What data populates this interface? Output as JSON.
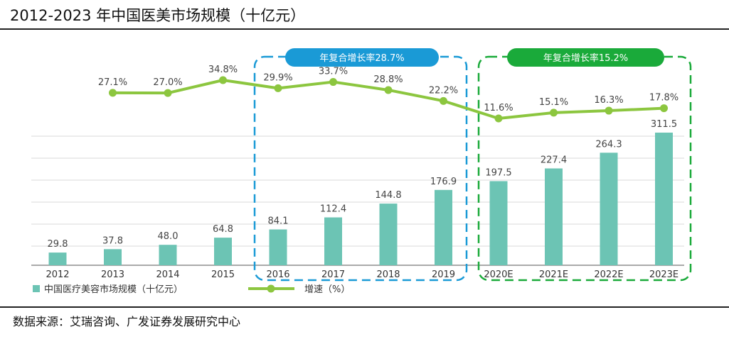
{
  "page": {
    "title": "2012-2023 年中国医美市场规模（十亿元）",
    "source": "数据来源：艾瑞咨询、广发证券发展研究中心"
  },
  "chart_data": {
    "type": "bar",
    "categories": [
      "2012",
      "2013",
      "2014",
      "2015",
      "2016",
      "2017",
      "2018",
      "2019",
      "2020E",
      "2021E",
      "2022E",
      "2023E"
    ],
    "series": [
      {
        "name": "中国医疗美容市场规模（十亿元）",
        "type": "bar",
        "color": "#6cc4b4",
        "values": [
          29.8,
          37.8,
          48.0,
          64.8,
          84.1,
          112.4,
          144.8,
          176.9,
          197.5,
          227.4,
          264.3,
          311.5
        ],
        "labels": [
          "29.8",
          "37.8",
          "48.0",
          "64.8",
          "84.1",
          "112.4",
          "144.8",
          "176.9",
          "197.5",
          "227.4",
          "264.3",
          "311.5"
        ]
      },
      {
        "name": "增速（%）",
        "type": "line",
        "color": "#8cc63f",
        "values": [
          null,
          27.1,
          27.0,
          34.8,
          29.9,
          33.7,
          28.8,
          22.2,
          11.6,
          15.1,
          16.3,
          17.8
        ],
        "labels": [
          null,
          "27.1%",
          "27.0%",
          "34.8%",
          "29.9%",
          "33.7%",
          "28.8%",
          "22.2%",
          "11.6%",
          "15.1%",
          "16.3%",
          "17.8%"
        ]
      }
    ],
    "annotations": [
      {
        "text": "年复合增长率28.7%",
        "from": "2016",
        "to": "2019",
        "color": "#1a9ad6"
      },
      {
        "text": "年复合增长率15.2%",
        "from": "2020E",
        "to": "2023E",
        "color": "#1aaa3a"
      }
    ],
    "legend": "bottom-left",
    "grid": true
  }
}
